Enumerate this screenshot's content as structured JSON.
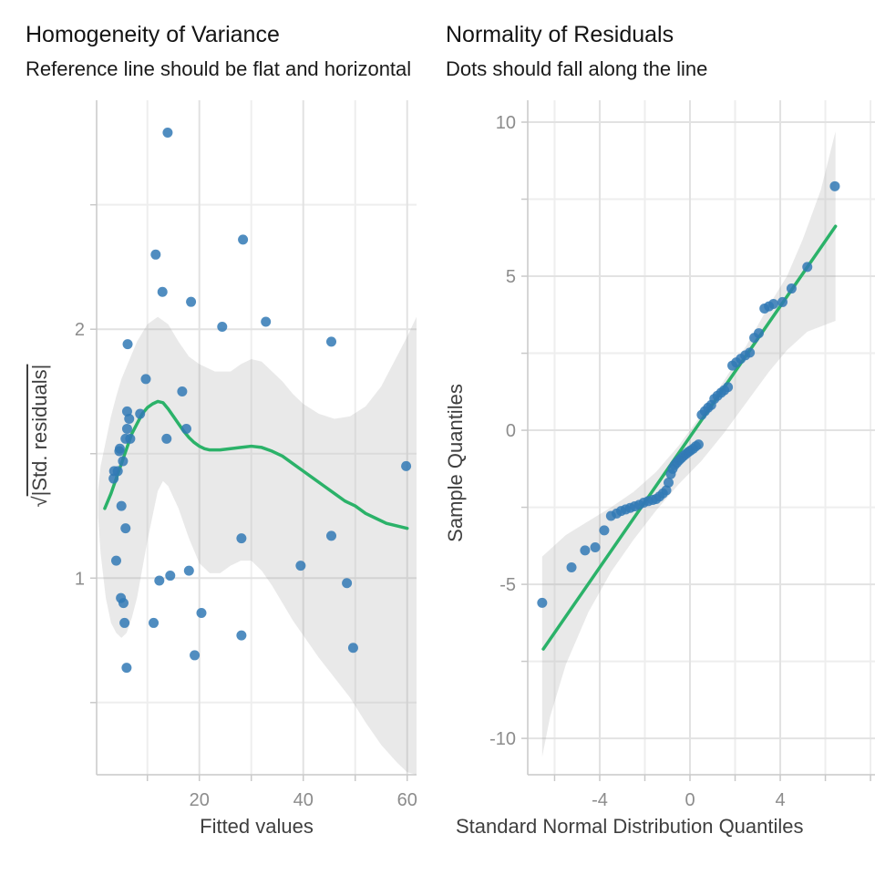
{
  "page": {
    "background": "#ffffff"
  },
  "colors": {
    "point": "#3179b5",
    "smooth_line": "#2bb269",
    "ribbon": "#999999",
    "ribbon_opacity": 0.22,
    "grid_major": "#e2e2e2",
    "grid_minor": "#eeeeee",
    "axis_line": "#c9c9c9",
    "tick": "#c9c9c9",
    "axis_text": "#8c8c8c",
    "axis_title": "#3f3f3f",
    "title_text": "#141414"
  },
  "chart_data": [
    {
      "type": "scatter",
      "title": "Homogeneity of Variance",
      "subtitle": "Reference line should be flat and horizontal",
      "xlabel": "Fitted values",
      "ylabel": "√|Std. residuals|",
      "ylabel_radical": "√",
      "ylabel_body": "|Std. residuals|",
      "xlim": [
        0.23,
        61.8
      ],
      "ylim": [
        0.21,
        2.92
      ],
      "grid": true,
      "legend": "none",
      "x_ticks": [
        {
          "v": 20,
          "label": "20"
        },
        {
          "v": 40,
          "label": "40"
        },
        {
          "v": 60,
          "label": "60"
        }
      ],
      "y_ticks": [
        {
          "v": 1,
          "label": "1"
        },
        {
          "v": 2,
          "label": "2"
        }
      ],
      "x_minor": [
        10,
        30,
        50
      ],
      "y_minor": [
        0.5,
        1.5,
        2.5
      ],
      "points": [
        [
          13.9,
          2.79
        ],
        [
          11.6,
          2.3
        ],
        [
          28.4,
          2.36
        ],
        [
          12.9,
          2.15
        ],
        [
          18.4,
          2.11
        ],
        [
          24.4,
          2.01
        ],
        [
          32.8,
          2.03
        ],
        [
          6.2,
          1.94
        ],
        [
          45.4,
          1.95
        ],
        [
          9.7,
          1.8
        ],
        [
          16.7,
          1.75
        ],
        [
          6.1,
          1.67
        ],
        [
          8.6,
          1.66
        ],
        [
          6.5,
          1.64
        ],
        [
          6.1,
          1.6
        ],
        [
          17.5,
          1.6
        ],
        [
          5.8,
          1.56
        ],
        [
          6.7,
          1.56
        ],
        [
          13.7,
          1.56
        ],
        [
          4.7,
          1.52
        ],
        [
          4.6,
          1.51
        ],
        [
          5.3,
          1.47
        ],
        [
          59.8,
          1.45
        ],
        [
          3.6,
          1.43
        ],
        [
          4.3,
          1.43
        ],
        [
          3.5,
          1.4
        ],
        [
          5.0,
          1.29
        ],
        [
          5.8,
          1.2
        ],
        [
          28.1,
          1.16
        ],
        [
          45.4,
          1.17
        ],
        [
          4.0,
          1.07
        ],
        [
          39.5,
          1.05
        ],
        [
          18.0,
          1.03
        ],
        [
          14.4,
          1.01
        ],
        [
          12.3,
          0.99
        ],
        [
          48.4,
          0.98
        ],
        [
          4.9,
          0.92
        ],
        [
          5.4,
          0.9
        ],
        [
          20.4,
          0.86
        ],
        [
          5.6,
          0.82
        ],
        [
          11.2,
          0.82
        ],
        [
          28.1,
          0.77
        ],
        [
          19.1,
          0.69
        ],
        [
          6.0,
          0.64
        ],
        [
          49.6,
          0.72
        ]
      ],
      "smooth_line": [
        [
          1.8,
          1.28
        ],
        [
          3,
          1.34
        ],
        [
          4,
          1.4
        ],
        [
          5,
          1.46
        ],
        [
          6,
          1.52
        ],
        [
          7,
          1.58
        ],
        [
          8,
          1.62
        ],
        [
          9,
          1.66
        ],
        [
          10,
          1.685
        ],
        [
          11,
          1.7
        ],
        [
          12,
          1.71
        ],
        [
          13,
          1.705
        ],
        [
          14,
          1.68
        ],
        [
          15,
          1.65
        ],
        [
          16,
          1.62
        ],
        [
          17,
          1.59
        ],
        [
          18,
          1.565
        ],
        [
          19,
          1.545
        ],
        [
          20,
          1.53
        ],
        [
          21,
          1.52
        ],
        [
          22,
          1.515
        ],
        [
          24,
          1.515
        ],
        [
          26,
          1.52
        ],
        [
          28,
          1.525
        ],
        [
          30,
          1.53
        ],
        [
          32,
          1.525
        ],
        [
          34,
          1.51
        ],
        [
          36,
          1.49
        ],
        [
          38,
          1.46
        ],
        [
          40,
          1.43
        ],
        [
          42,
          1.4
        ],
        [
          44,
          1.37
        ],
        [
          46,
          1.34
        ],
        [
          48,
          1.31
        ],
        [
          50,
          1.29
        ],
        [
          52,
          1.26
        ],
        [
          54,
          1.24
        ],
        [
          56,
          1.22
        ],
        [
          58,
          1.21
        ],
        [
          60,
          1.2
        ]
      ],
      "ribbon_upper": [
        [
          0.5,
          1.35
        ],
        [
          1,
          1.45
        ],
        [
          2,
          1.55
        ],
        [
          3,
          1.65
        ],
        [
          4,
          1.73
        ],
        [
          5,
          1.8
        ],
        [
          6,
          1.85
        ],
        [
          8,
          1.95
        ],
        [
          10,
          2.02
        ],
        [
          12,
          2.05
        ],
        [
          14,
          2.02
        ],
        [
          16,
          1.95
        ],
        [
          18,
          1.89
        ],
        [
          20,
          1.86
        ],
        [
          23,
          1.83
        ],
        [
          26,
          1.83
        ],
        [
          28,
          1.86
        ],
        [
          30,
          1.88
        ],
        [
          32,
          1.87
        ],
        [
          34,
          1.83
        ],
        [
          36,
          1.79
        ],
        [
          38,
          1.74
        ],
        [
          40,
          1.7
        ],
        [
          43,
          1.66
        ],
        [
          46,
          1.64
        ],
        [
          49,
          1.65
        ],
        [
          52,
          1.69
        ],
        [
          55,
          1.77
        ],
        [
          58,
          1.89
        ],
        [
          60,
          1.97
        ],
        [
          61.8,
          2.05
        ]
      ],
      "ribbon_lower": [
        [
          0.5,
          1.25
        ],
        [
          1,
          1.1
        ],
        [
          2,
          0.92
        ],
        [
          3,
          0.82
        ],
        [
          4,
          0.78
        ],
        [
          5,
          0.76
        ],
        [
          6,
          0.78
        ],
        [
          7,
          0.84
        ],
        [
          8,
          0.92
        ],
        [
          10,
          1.15
        ],
        [
          12,
          1.35
        ],
        [
          13,
          1.39
        ],
        [
          14,
          1.37
        ],
        [
          16,
          1.28
        ],
        [
          18,
          1.16
        ],
        [
          20,
          1.06
        ],
        [
          22,
          1.02
        ],
        [
          24,
          1.02
        ],
        [
          26,
          1.05
        ],
        [
          28,
          1.07
        ],
        [
          30,
          1.07
        ],
        [
          32,
          1.03
        ],
        [
          34,
          0.97
        ],
        [
          36,
          0.9
        ],
        [
          38,
          0.83
        ],
        [
          40,
          0.77
        ],
        [
          43,
          0.68
        ],
        [
          46,
          0.6
        ],
        [
          49,
          0.52
        ],
        [
          52,
          0.42
        ],
        [
          55,
          0.33
        ],
        [
          58,
          0.26
        ],
        [
          60,
          0.22
        ],
        [
          61.8,
          0.21
        ]
      ]
    },
    {
      "type": "scatter",
      "title": "Normality of Residuals",
      "subtitle": "Dots should fall along the line",
      "xlabel": "Standard Normal Distribution Quantiles",
      "ylabel": "Sample Quantiles",
      "xlim": [
        -7.19,
        8.28
      ],
      "ylim": [
        -11.18,
        10.71
      ],
      "grid": true,
      "legend": "none",
      "x_ticks": [
        {
          "v": -4,
          "label": "-4"
        },
        {
          "v": 0,
          "label": "0"
        },
        {
          "v": 4,
          "label": "4"
        }
      ],
      "y_ticks": [
        {
          "v": -10,
          "label": "-10"
        },
        {
          "v": -5,
          "label": "-5"
        },
        {
          "v": 0,
          "label": "0"
        },
        {
          "v": 5,
          "label": "5"
        },
        {
          "v": 10,
          "label": "10"
        }
      ],
      "x_minor": [
        -6,
        -2,
        2,
        6,
        8
      ],
      "y_minor": [
        -7.5,
        -2.5,
        2.5,
        7.5
      ],
      "points": [
        [
          -6.55,
          -5.6
        ],
        [
          -5.25,
          -4.45
        ],
        [
          -4.65,
          -3.9
        ],
        [
          -4.2,
          -3.8
        ],
        [
          -3.8,
          -3.25
        ],
        [
          -3.5,
          -2.78
        ],
        [
          -3.25,
          -2.7
        ],
        [
          -3.05,
          -2.62
        ],
        [
          -2.85,
          -2.57
        ],
        [
          -2.65,
          -2.52
        ],
        [
          -2.45,
          -2.47
        ],
        [
          -2.25,
          -2.42
        ],
        [
          -2.05,
          -2.35
        ],
        [
          -1.85,
          -2.3
        ],
        [
          -1.65,
          -2.26
        ],
        [
          -1.5,
          -2.23
        ],
        [
          -1.35,
          -2.15
        ],
        [
          -1.2,
          -2.05
        ],
        [
          -1.05,
          -1.95
        ],
        [
          -0.95,
          -1.7
        ],
        [
          -0.85,
          -1.42
        ],
        [
          -0.77,
          -1.25
        ],
        [
          -0.68,
          -1.13
        ],
        [
          -0.58,
          -1.05
        ],
        [
          -0.48,
          -0.97
        ],
        [
          -0.38,
          -0.9
        ],
        [
          -0.28,
          -0.83
        ],
        [
          -0.18,
          -0.77
        ],
        [
          -0.08,
          -0.71
        ],
        [
          0.02,
          -0.66
        ],
        [
          0.14,
          -0.6
        ],
        [
          0.26,
          -0.52
        ],
        [
          0.38,
          -0.46
        ],
        [
          0.52,
          0.5
        ],
        [
          0.66,
          0.62
        ],
        [
          0.8,
          0.73
        ],
        [
          0.94,
          0.82
        ],
        [
          1.08,
          1.02
        ],
        [
          1.22,
          1.12
        ],
        [
          1.38,
          1.22
        ],
        [
          1.52,
          1.3
        ],
        [
          1.68,
          1.4
        ],
        [
          1.88,
          2.1
        ],
        [
          2.05,
          2.2
        ],
        [
          2.25,
          2.32
        ],
        [
          2.45,
          2.43
        ],
        [
          2.65,
          2.52
        ],
        [
          2.85,
          3.0
        ],
        [
          3.05,
          3.15
        ],
        [
          3.3,
          3.95
        ],
        [
          3.5,
          4.02
        ],
        [
          3.7,
          4.1
        ],
        [
          4.1,
          4.16
        ],
        [
          4.5,
          4.6
        ],
        [
          5.2,
          5.3
        ],
        [
          6.42,
          7.92
        ]
      ],
      "smooth_line": [
        [
          -6.5,
          -7.1
        ],
        [
          6.45,
          6.62
        ]
      ],
      "ribbon_upper": [
        [
          -6.55,
          -4.1
        ],
        [
          -5.5,
          -3.4
        ],
        [
          -4.5,
          -2.95
        ],
        [
          -3.5,
          -2.5
        ],
        [
          -2.5,
          -2.0
        ],
        [
          -1.5,
          -1.35
        ],
        [
          -0.5,
          -0.5
        ],
        [
          0.5,
          0.5
        ],
        [
          1.5,
          1.6
        ],
        [
          2.5,
          2.75
        ],
        [
          3.5,
          4.05
        ],
        [
          4.3,
          5.0
        ],
        [
          5.0,
          6.2
        ],
        [
          5.8,
          7.8
        ],
        [
          6.45,
          9.7
        ]
      ],
      "ribbon_lower": [
        [
          -6.55,
          -10.6
        ],
        [
          -6.2,
          -9.3
        ],
        [
          -5.5,
          -7.6
        ],
        [
          -4.5,
          -5.9
        ],
        [
          -3.5,
          -4.6
        ],
        [
          -2.5,
          -3.55
        ],
        [
          -1.5,
          -2.6
        ],
        [
          -0.5,
          -1.75
        ],
        [
          0.5,
          -1.0
        ],
        [
          1.5,
          -0.1
        ],
        [
          2.5,
          0.9
        ],
        [
          3.5,
          1.9
        ],
        [
          4.3,
          2.6
        ],
        [
          5.2,
          3.2
        ],
        [
          6.45,
          3.55
        ]
      ]
    }
  ]
}
